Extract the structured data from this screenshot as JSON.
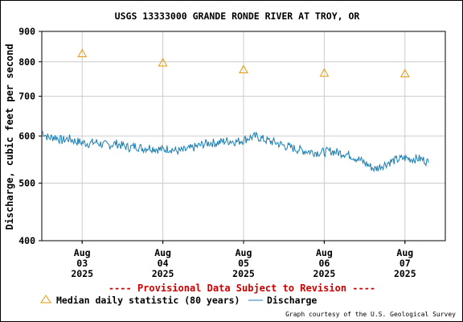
{
  "colors": {
    "discharge": "#1a7fb3",
    "median": "#e69a00",
    "provisional": "#cc0000",
    "grid": "#cccccc",
    "axis": "#000000"
  },
  "legend": {
    "median_label": "Median daily statistic (80 years)",
    "discharge_label": "Discharge",
    "provisional": "---- Provisional Data Subject to Revision ----"
  },
  "credit": "Graph courtesy of the U.S. Geological Survey",
  "chart_data": {
    "type": "line",
    "title": "USGS 13333000 GRANDE RONDE RIVER AT TROY, OR",
    "ylabel": "Discharge, cubic feet per second",
    "xlabel": "",
    "y_scale": "log",
    "ylim": [
      400,
      900
    ],
    "y_ticks": [
      400,
      500,
      600,
      700,
      800,
      900
    ],
    "y_tick_labels": [
      "400",
      "500",
      "600",
      "700",
      "800",
      "900"
    ],
    "x_range": [
      "2025-08-02T12:00",
      "2025-08-07T12:00"
    ],
    "x_ticks": [
      {
        "date": "2025-08-03T00:00",
        "month": "Aug",
        "day": "03",
        "year": "2025"
      },
      {
        "date": "2025-08-04T00:00",
        "month": "Aug",
        "day": "04",
        "year": "2025"
      },
      {
        "date": "2025-08-05T00:00",
        "month": "Aug",
        "day": "05",
        "year": "2025"
      },
      {
        "date": "2025-08-06T00:00",
        "month": "Aug",
        "day": "06",
        "year": "2025"
      },
      {
        "date": "2025-08-07T00:00",
        "month": "Aug",
        "day": "07",
        "year": "2025"
      }
    ],
    "series": [
      {
        "name": "Discharge",
        "style": "line",
        "points": [
          [
            "2025-08-02T12:00",
            612
          ],
          [
            "2025-08-02T13:00",
            603
          ],
          [
            "2025-08-02T14:00",
            596
          ],
          [
            "2025-08-02T16:00",
            598
          ],
          [
            "2025-08-02T18:00",
            590
          ],
          [
            "2025-08-02T20:00",
            594
          ],
          [
            "2025-08-02T22:00",
            588
          ],
          [
            "2025-08-03T00:00",
            585
          ],
          [
            "2025-08-03T02:00",
            583
          ],
          [
            "2025-08-03T04:00",
            586
          ],
          [
            "2025-08-03T06:00",
            581
          ],
          [
            "2025-08-03T08:00",
            579
          ],
          [
            "2025-08-03T10:00",
            583
          ],
          [
            "2025-08-03T12:00",
            578
          ],
          [
            "2025-08-03T14:00",
            574
          ],
          [
            "2025-08-03T16:00",
            577
          ],
          [
            "2025-08-03T18:00",
            572
          ],
          [
            "2025-08-03T20:00",
            574
          ],
          [
            "2025-08-03T22:00",
            571
          ],
          [
            "2025-08-04T00:00",
            569
          ],
          [
            "2025-08-04T02:00",
            572
          ],
          [
            "2025-08-04T04:00",
            566
          ],
          [
            "2025-08-04T06:00",
            567
          ],
          [
            "2025-08-04T08:00",
            571
          ],
          [
            "2025-08-04T10:00",
            576
          ],
          [
            "2025-08-04T12:00",
            581
          ],
          [
            "2025-08-04T14:00",
            585
          ],
          [
            "2025-08-04T16:00",
            584
          ],
          [
            "2025-08-04T18:00",
            588
          ],
          [
            "2025-08-04T20:00",
            589
          ],
          [
            "2025-08-04T22:00",
            587
          ],
          [
            "2025-08-05T00:00",
            591
          ],
          [
            "2025-08-05T02:00",
            597
          ],
          [
            "2025-08-05T04:00",
            599
          ],
          [
            "2025-08-05T06:00",
            592
          ],
          [
            "2025-08-05T08:00",
            588
          ],
          [
            "2025-08-05T10:00",
            584
          ],
          [
            "2025-08-05T12:00",
            578
          ],
          [
            "2025-08-05T14:00",
            574
          ],
          [
            "2025-08-05T16:00",
            570
          ],
          [
            "2025-08-05T18:00",
            567
          ],
          [
            "2025-08-05T20:00",
            565
          ],
          [
            "2025-08-05T22:00",
            563
          ],
          [
            "2025-08-06T00:00",
            564
          ],
          [
            "2025-08-06T02:00",
            566
          ],
          [
            "2025-08-06T04:00",
            563
          ],
          [
            "2025-08-06T06:00",
            561
          ],
          [
            "2025-08-06T08:00",
            556
          ],
          [
            "2025-08-06T10:00",
            549
          ],
          [
            "2025-08-06T12:00",
            541
          ],
          [
            "2025-08-06T14:00",
            532
          ],
          [
            "2025-08-06T15:00",
            528
          ],
          [
            "2025-08-06T16:00",
            531
          ],
          [
            "2025-08-06T17:00",
            535
          ],
          [
            "2025-08-06T18:00",
            538
          ],
          [
            "2025-08-06T20:00",
            544
          ],
          [
            "2025-08-06T22:00",
            548
          ],
          [
            "2025-08-07T00:00",
            551
          ],
          [
            "2025-08-07T02:00",
            549
          ],
          [
            "2025-08-07T04:00",
            550
          ],
          [
            "2025-08-07T06:00",
            546
          ],
          [
            "2025-08-07T07:00",
            541
          ]
        ]
      },
      {
        "name": "Median daily statistic (80 years)",
        "style": "triangle",
        "points": [
          [
            "2025-08-03T00:00",
            826
          ],
          [
            "2025-08-04T00:00",
            797
          ],
          [
            "2025-08-05T00:00",
            776
          ],
          [
            "2025-08-06T00:00",
            766
          ],
          [
            "2025-08-07T00:00",
            764
          ]
        ]
      }
    ]
  }
}
